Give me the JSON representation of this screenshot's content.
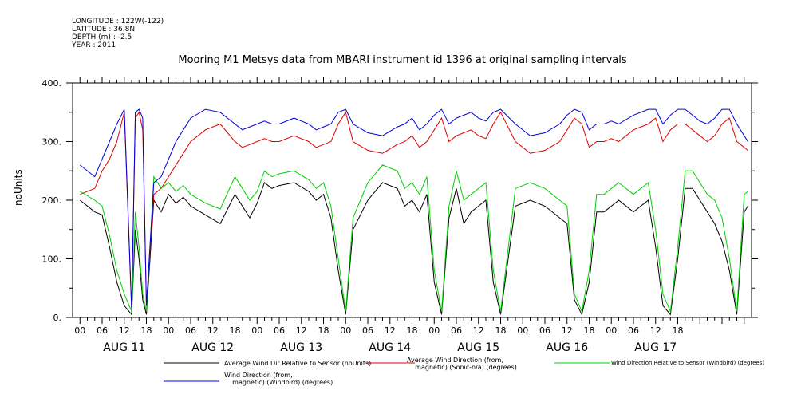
{
  "header": {
    "longitude": "LONGITUDE : 122W(-122)",
    "latitude": "LATITUDE : 36.8N",
    "depth": "DEPTH (m) : -2.5",
    "year": "YEAR : 2011"
  },
  "chart_data": {
    "type": "line",
    "title": "Mooring M1 Metsys data from MBARI instrument id 1396 at original sampling intervals",
    "ylabel": "noUnits",
    "ylim": [
      0,
      400
    ],
    "yticks": [
      0,
      100,
      200,
      300,
      400
    ],
    "ytick_labels": [
      "0.",
      "100.",
      "200.",
      "300.",
      "400."
    ],
    "x_hour_labels": [
      "00",
      "06",
      "12",
      "18",
      "00",
      "06",
      "12",
      "18",
      "00",
      "06",
      "12",
      "18",
      "00",
      "06",
      "12",
      "18",
      "00",
      "06",
      "12",
      "18",
      "00",
      "06",
      "12",
      "18",
      "00",
      "06",
      "12",
      "18"
    ],
    "x_day_labels": [
      "AUG 11",
      "AUG 12",
      "AUG 13",
      "AUG 14",
      "AUG 15",
      "AUG 16",
      "AUG 17"
    ],
    "xlim_hours": [
      -26,
      158
    ],
    "grid": false,
    "series": [
      {
        "name": "Average Wind Dir Relative to Sensor (noUnits)",
        "color": "#000000",
        "x": [
          -24,
          -20,
          -18,
          -16,
          -14,
          -12,
          -10,
          -9,
          -8,
          -7,
          -6,
          -4,
          -2,
          0,
          2,
          4,
          6,
          10,
          14,
          18,
          20,
          22,
          24,
          26,
          28,
          30,
          34,
          38,
          40,
          42,
          44,
          46,
          48,
          50,
          54,
          58,
          62,
          64,
          66,
          68,
          70,
          72,
          74,
          76,
          78,
          80,
          82,
          84,
          86,
          88,
          90,
          94,
          98,
          102,
          106,
          108,
          110,
          112,
          114,
          116,
          118,
          120,
          122,
          126,
          130,
          132,
          134,
          136,
          138,
          140,
          142,
          144,
          146,
          148,
          150,
          152,
          154,
          156,
          157
        ],
        "y": [
          200,
          180,
          175,
          120,
          60,
          20,
          5,
          150,
          100,
          30,
          5,
          200,
          180,
          210,
          195,
          205,
          190,
          175,
          160,
          210,
          190,
          170,
          195,
          230,
          220,
          225,
          230,
          215,
          200,
          210,
          170,
          80,
          5,
          150,
          200,
          230,
          220,
          190,
          200,
          180,
          210,
          60,
          5,
          170,
          220,
          160,
          180,
          190,
          200,
          60,
          5,
          190,
          200,
          190,
          170,
          160,
          30,
          5,
          60,
          180,
          180,
          190,
          200,
          180,
          200,
          120,
          20,
          5,
          100,
          220,
          220,
          200,
          180,
          160,
          130,
          80,
          5,
          180,
          190
        ]
      },
      {
        "name": "Average Wind Direction (from, magnetic) (Sonic-n/a) (degrees)",
        "color": "#e00000",
        "x": [
          -24,
          -20,
          -18,
          -16,
          -14,
          -12,
          -10,
          -9,
          -8,
          -7,
          -6,
          -4,
          -2,
          0,
          2,
          4,
          6,
          10,
          14,
          18,
          20,
          22,
          24,
          26,
          28,
          30,
          34,
          38,
          40,
          42,
          44,
          46,
          48,
          50,
          54,
          58,
          62,
          64,
          66,
          68,
          70,
          72,
          74,
          76,
          78,
          80,
          82,
          84,
          86,
          88,
          90,
          94,
          98,
          102,
          106,
          108,
          110,
          112,
          114,
          116,
          118,
          120,
          122,
          126,
          130,
          132,
          134,
          136,
          138,
          140,
          142,
          144,
          146,
          148,
          150,
          152,
          154,
          156,
          157
        ],
        "y": [
          210,
          220,
          250,
          270,
          300,
          350,
          10,
          340,
          350,
          320,
          20,
          210,
          220,
          240,
          260,
          280,
          300,
          320,
          330,
          300,
          290,
          295,
          300,
          305,
          300,
          300,
          310,
          300,
          290,
          295,
          300,
          330,
          350,
          300,
          285,
          280,
          295,
          300,
          310,
          290,
          300,
          320,
          340,
          300,
          310,
          315,
          320,
          310,
          305,
          330,
          350,
          300,
          280,
          285,
          300,
          320,
          340,
          330,
          290,
          300,
          300,
          305,
          300,
          320,
          330,
          340,
          300,
          320,
          330,
          330,
          320,
          310,
          300,
          310,
          330,
          340,
          300,
          290,
          285
        ]
      },
      {
        "name": "Wind Direction Relative to Sensor (Windbird) (degrees)",
        "color": "#00d000",
        "x": [
          -24,
          -20,
          -18,
          -16,
          -14,
          -12,
          -10,
          -9,
          -8,
          -7,
          -6,
          -4,
          -2,
          0,
          2,
          4,
          6,
          10,
          14,
          18,
          20,
          22,
          24,
          26,
          28,
          30,
          34,
          38,
          40,
          42,
          44,
          46,
          48,
          50,
          54,
          58,
          62,
          64,
          66,
          68,
          70,
          72,
          74,
          76,
          78,
          80,
          82,
          84,
          86,
          88,
          90,
          94,
          98,
          102,
          106,
          108,
          110,
          112,
          114,
          116,
          118,
          120,
          122,
          126,
          130,
          132,
          134,
          136,
          138,
          140,
          142,
          144,
          146,
          148,
          150,
          152,
          154,
          156,
          157
        ],
        "y": [
          215,
          200,
          190,
          140,
          80,
          40,
          10,
          180,
          120,
          40,
          10,
          240,
          220,
          230,
          215,
          225,
          210,
          195,
          185,
          240,
          220,
          200,
          215,
          250,
          240,
          245,
          250,
          235,
          220,
          230,
          190,
          100,
          10,
          170,
          230,
          260,
          250,
          220,
          230,
          210,
          240,
          80,
          10,
          190,
          250,
          200,
          210,
          220,
          230,
          80,
          10,
          220,
          230,
          220,
          200,
          190,
          40,
          10,
          80,
          210,
          210,
          220,
          230,
          210,
          230,
          150,
          40,
          10,
          120,
          250,
          250,
          230,
          210,
          200,
          170,
          100,
          10,
          210,
          215
        ]
      },
      {
        "name": "Wind Direction (from, magnetic) (Windbird) (degrees)",
        "color": "#0000e0",
        "x": [
          -24,
          -20,
          -18,
          -16,
          -14,
          -12,
          -10,
          -9,
          -8,
          -7,
          -6,
          -4,
          -2,
          0,
          2,
          4,
          6,
          10,
          14,
          18,
          20,
          22,
          24,
          26,
          28,
          30,
          34,
          38,
          40,
          42,
          44,
          46,
          48,
          50,
          54,
          58,
          62,
          64,
          66,
          68,
          70,
          72,
          74,
          76,
          78,
          80,
          82,
          84,
          86,
          88,
          90,
          94,
          98,
          102,
          106,
          108,
          110,
          112,
          114,
          116,
          118,
          120,
          122,
          126,
          130,
          132,
          134,
          136,
          138,
          140,
          142,
          144,
          146,
          148,
          150,
          152,
          154,
          156,
          157
        ],
        "y": [
          260,
          240,
          270,
          300,
          330,
          355,
          15,
          350,
          355,
          340,
          20,
          230,
          240,
          270,
          300,
          320,
          340,
          355,
          350,
          330,
          320,
          325,
          330,
          335,
          330,
          330,
          340,
          330,
          320,
          325,
          330,
          350,
          355,
          330,
          315,
          310,
          325,
          330,
          340,
          320,
          330,
          345,
          355,
          330,
          340,
          345,
          350,
          340,
          335,
          350,
          355,
          330,
          310,
          315,
          330,
          345,
          355,
          350,
          320,
          330,
          330,
          335,
          330,
          345,
          355,
          355,
          330,
          345,
          355,
          355,
          345,
          335,
          330,
          340,
          355,
          355,
          330,
          310,
          300
        ]
      }
    ]
  },
  "legend": {
    "black": "Average Wind Dir Relative to Sensor (noUnits)",
    "red": "Average Wind Direction (from,\n    magnetic) (Sonic-n/a) (degrees)",
    "green": "Wind Direction Relative to Sensor (Windbird) (degrees)",
    "blue": "Wind Direction (from,\n    magnetic) (Windbird) (degrees)"
  }
}
